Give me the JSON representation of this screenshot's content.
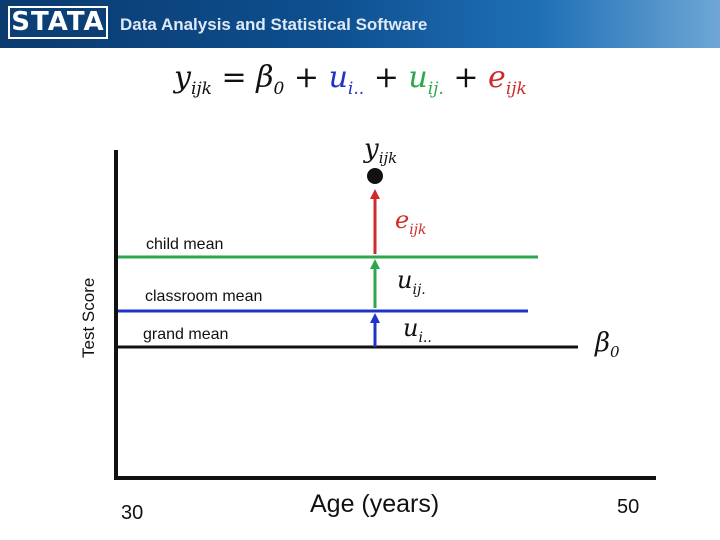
{
  "header": {
    "logo_text": "STATA",
    "tagline": "Data Analysis and Statistical Software"
  },
  "colors": {
    "blue": "#2033c8",
    "green": "#2aa84a",
    "red": "#d02a2a",
    "axis": "#111111"
  },
  "formula": {
    "y": "y",
    "y_sub": "ijk",
    "eq": " = ",
    "beta": "β",
    "beta_sub": "0",
    "plus1": " + ",
    "u1": "u",
    "u1_sub": "i..",
    "plus2": " + ",
    "u2": "u",
    "u2_sub": "ij.",
    "plus3": " + ",
    "e": "e",
    "e_sub": "ijk"
  },
  "labels": {
    "child_mean": "child mean",
    "classroom_mean": "classroom mean",
    "grand_mean": "grand mean",
    "point": "y",
    "point_sub": "ijk",
    "e": "e",
    "e_sub": "ijk",
    "u2": "u",
    "u2_sub": "ij.",
    "u1": "u",
    "u1_sub": "i..",
    "beta": "β",
    "beta_sub": "0"
  },
  "axes": {
    "xlabel": "Age (years)",
    "ylabel": "Test Score",
    "x_min_label": "30",
    "x_max_label": "50"
  }
}
